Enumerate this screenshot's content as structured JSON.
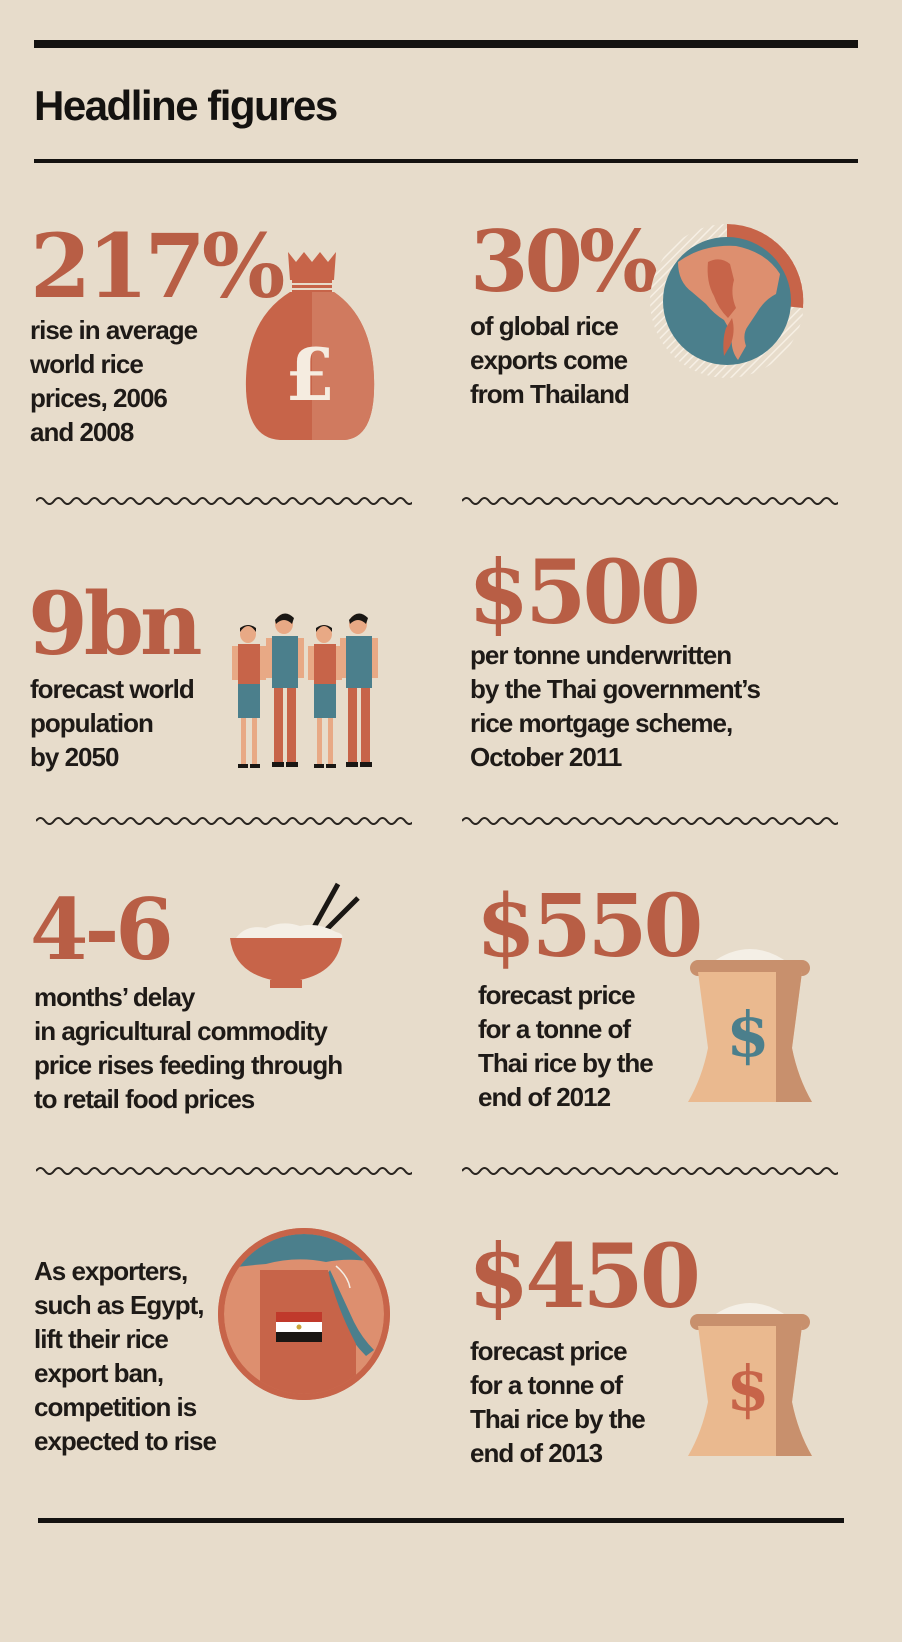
{
  "header": {
    "title": "Headline figures"
  },
  "colors": {
    "background": "#e7dccb",
    "accent": "#b85e45",
    "teal": "#4b7f8c",
    "sack": "#eab98f",
    "dark": "#141210"
  },
  "stats": [
    {
      "figure": "217%",
      "lines": [
        "rise in average",
        "world rice",
        "prices, 2006",
        "and 2008"
      ],
      "icon": "money-bag-pound-icon",
      "symbol": "£"
    },
    {
      "figure": "30%",
      "lines": [
        "of global rice",
        "exports come",
        "from Thailand"
      ],
      "icon": "thailand-globe-icon"
    },
    {
      "figure": "9bn",
      "lines": [
        "forecast world",
        "population",
        "by 2050"
      ],
      "icon": "people-icon"
    },
    {
      "figure": "$500",
      "lines": [
        "per tonne underwritten",
        "by the Thai government’s",
        "rice mortgage scheme,",
        "October 2011"
      ]
    },
    {
      "figure": "4-6",
      "lines": [
        "months’ delay",
        "in agricultural commodity",
        "price rises feeding through",
        "to retail food prices"
      ],
      "icon": "rice-bowl-chopsticks-icon"
    },
    {
      "figure": "$550",
      "lines": [
        "forecast price",
        "for a tonne of",
        "Thai rice by the",
        "end of 2012"
      ],
      "icon": "rice-sack-dollar-icon",
      "symbol": "$"
    },
    {
      "lines": [
        "As exporters,",
        "such as Egypt,",
        "lift their rice",
        "export ban,",
        "competition is",
        "expected to rise"
      ],
      "icon": "egypt-map-icon"
    },
    {
      "figure": "$450",
      "lines": [
        "forecast price",
        "for a tonne of",
        "Thai rice by the",
        "end of 2013"
      ],
      "icon": "rice-sack-dollar-icon",
      "symbol": "$"
    }
  ]
}
